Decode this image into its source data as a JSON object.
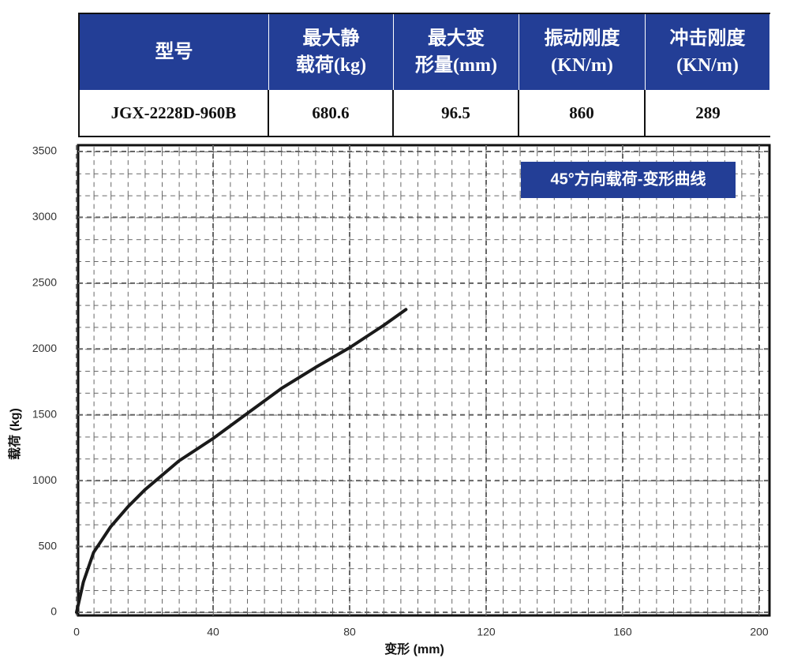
{
  "table": {
    "header": [
      [
        "型号"
      ],
      [
        "最大静",
        "载荷(kg)"
      ],
      [
        "最大变",
        "形量(mm)"
      ],
      [
        "振动刚度",
        "(KN/m)"
      ],
      [
        "冲击刚度",
        "(KN/m)"
      ]
    ],
    "rows": [
      [
        "JGX-2228D-960B",
        680.6,
        96.5,
        860,
        289
      ]
    ]
  },
  "chart_data": {
    "type": "line",
    "title": "45°方向载荷-变形曲线",
    "x_label": "变形 (mm)",
    "y_label": "载荷 (kg)",
    "x": [
      0,
      2,
      5,
      10,
      15,
      20,
      30,
      40,
      50,
      60,
      70,
      80,
      90,
      96.5
    ],
    "values": [
      0,
      230,
      455,
      650,
      800,
      930,
      1150,
      1320,
      1510,
      1700,
      1860,
      2010,
      2180,
      2300
    ],
    "color": "#1a1a1a",
    "xlim": [
      0,
      200
    ],
    "xticks": [
      0,
      40,
      80,
      120,
      160,
      200
    ],
    "ylim": [
      0,
      3500
    ],
    "yticks": [
      0,
      500,
      1000,
      1500,
      2000,
      2500,
      3000,
      3500
    ],
    "grid": true
  }
}
